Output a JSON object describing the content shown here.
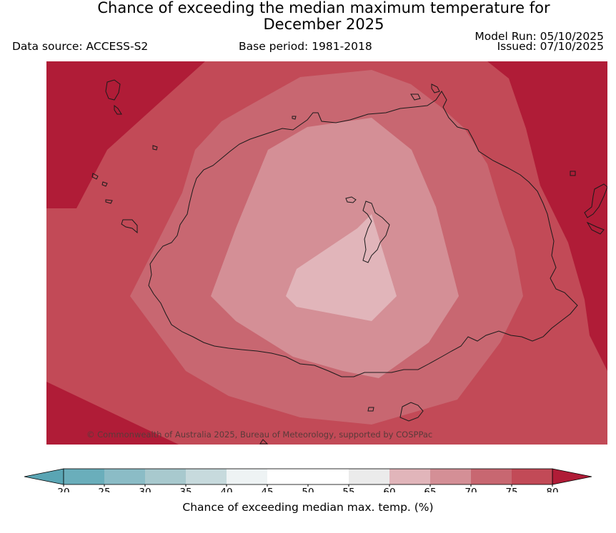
{
  "header": {
    "title_line1": "Chance of exceeding the median maximum temperature for",
    "title_line2": "December 2025",
    "data_source": "Data source: ACCESS-S2",
    "base_period": "Base period: 1981-2018",
    "model_run": "Model Run: 05/10/2025",
    "issued": "Issued: 07/10/2025"
  },
  "map": {
    "copyright": "© Commonwealth of Australia 2025, Bureau of Meteorology, supported by COSPPac",
    "probability_zones": [
      {
        "range": "75-80",
        "color": "#c24a57"
      },
      {
        "range": "70-75",
        "color": "#c86771"
      },
      {
        "range": "65-70",
        "color": "#d48f96"
      },
      {
        "range": "60-65",
        "color": "#e1b5ba"
      },
      {
        "range": ">80",
        "color": "#b01c37"
      }
    ]
  },
  "colorbar": {
    "label": "Chance of exceeding median max. temp. (%)",
    "ticks": [
      "20",
      "25",
      "30",
      "35",
      "40",
      "45",
      "50",
      "55",
      "60",
      "65",
      "70",
      "75",
      "80"
    ],
    "colors": {
      "under": "#5aa5b4",
      "bins": [
        "#6aaebb",
        "#8bbcc6",
        "#a8c9ce",
        "#c7dadd",
        "#eef3f4",
        "#ffffff",
        "#ffffff",
        "#ebebeb",
        "#e1b5ba",
        "#d48f96",
        "#c86771",
        "#c24a57"
      ],
      "over": "#b01c37"
    }
  }
}
